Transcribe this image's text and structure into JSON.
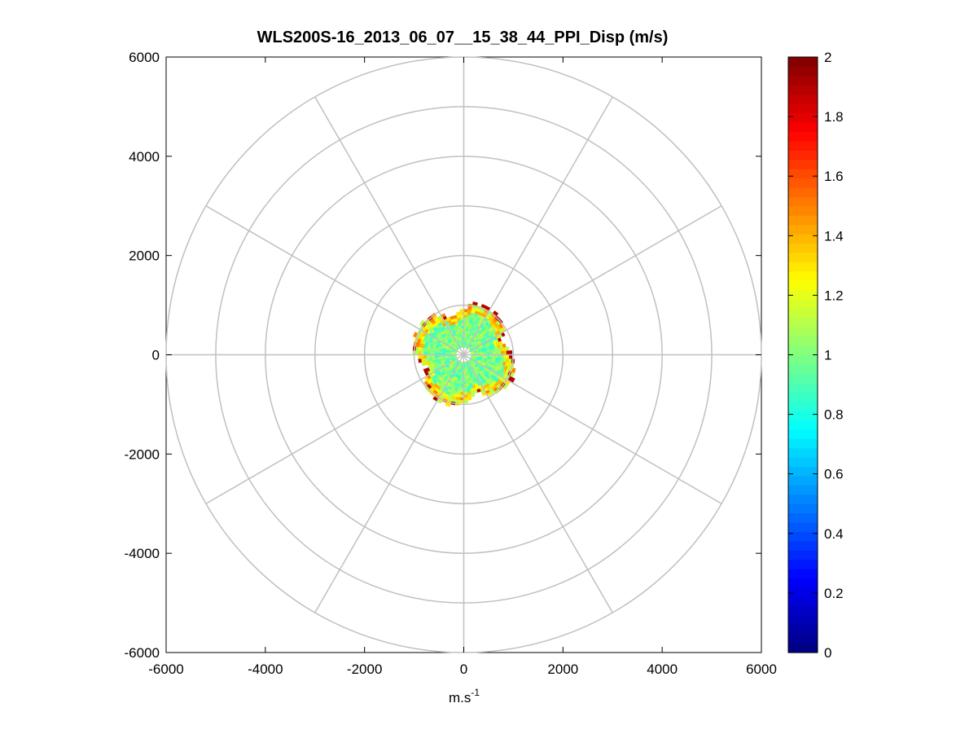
{
  "chart_data": {
    "type": "polar-ppi-heatmap",
    "title": "WLS200S-16_2013_06_07__15_38_44_PPI_Disp (m/s)",
    "xlabel": "m.s",
    "xlabel_superscript": "-1",
    "ylabel": "",
    "xlim": [
      -6000,
      6000
    ],
    "ylim": [
      -6000,
      6000
    ],
    "x_ticks": [
      -6000,
      -4000,
      -2000,
      0,
      2000,
      4000,
      6000
    ],
    "y_ticks": [
      6000,
      4000,
      2000,
      0,
      -2000,
      -4000,
      -6000
    ],
    "range_rings": [
      1000,
      2000,
      3000,
      4000,
      5000,
      6000
    ],
    "radial_spokes_deg": [
      0,
      30,
      60,
      90,
      120,
      150,
      180,
      210,
      240,
      270,
      300,
      330
    ],
    "grid_color": "#c0c0c0",
    "data_region": {
      "description": "valid dispersion data confined to range below ~1100 m",
      "inner_mean": 1.0,
      "edge_values": [
        1.9,
        1.5,
        1.3,
        1.1
      ],
      "max_range_m": 1100
    },
    "colorbar": {
      "colormap": "jet",
      "clim": [
        0,
        2
      ],
      "ticks": [
        0,
        0.2,
        0.4,
        0.6,
        0.8,
        1,
        1.2,
        1.4,
        1.6,
        1.8,
        2
      ],
      "tick_labels": [
        "0",
        "0.2",
        "0.4",
        "0.6",
        "0.8",
        "1",
        "1.2",
        "1.4",
        "1.6",
        "1.8",
        "2"
      ]
    }
  }
}
